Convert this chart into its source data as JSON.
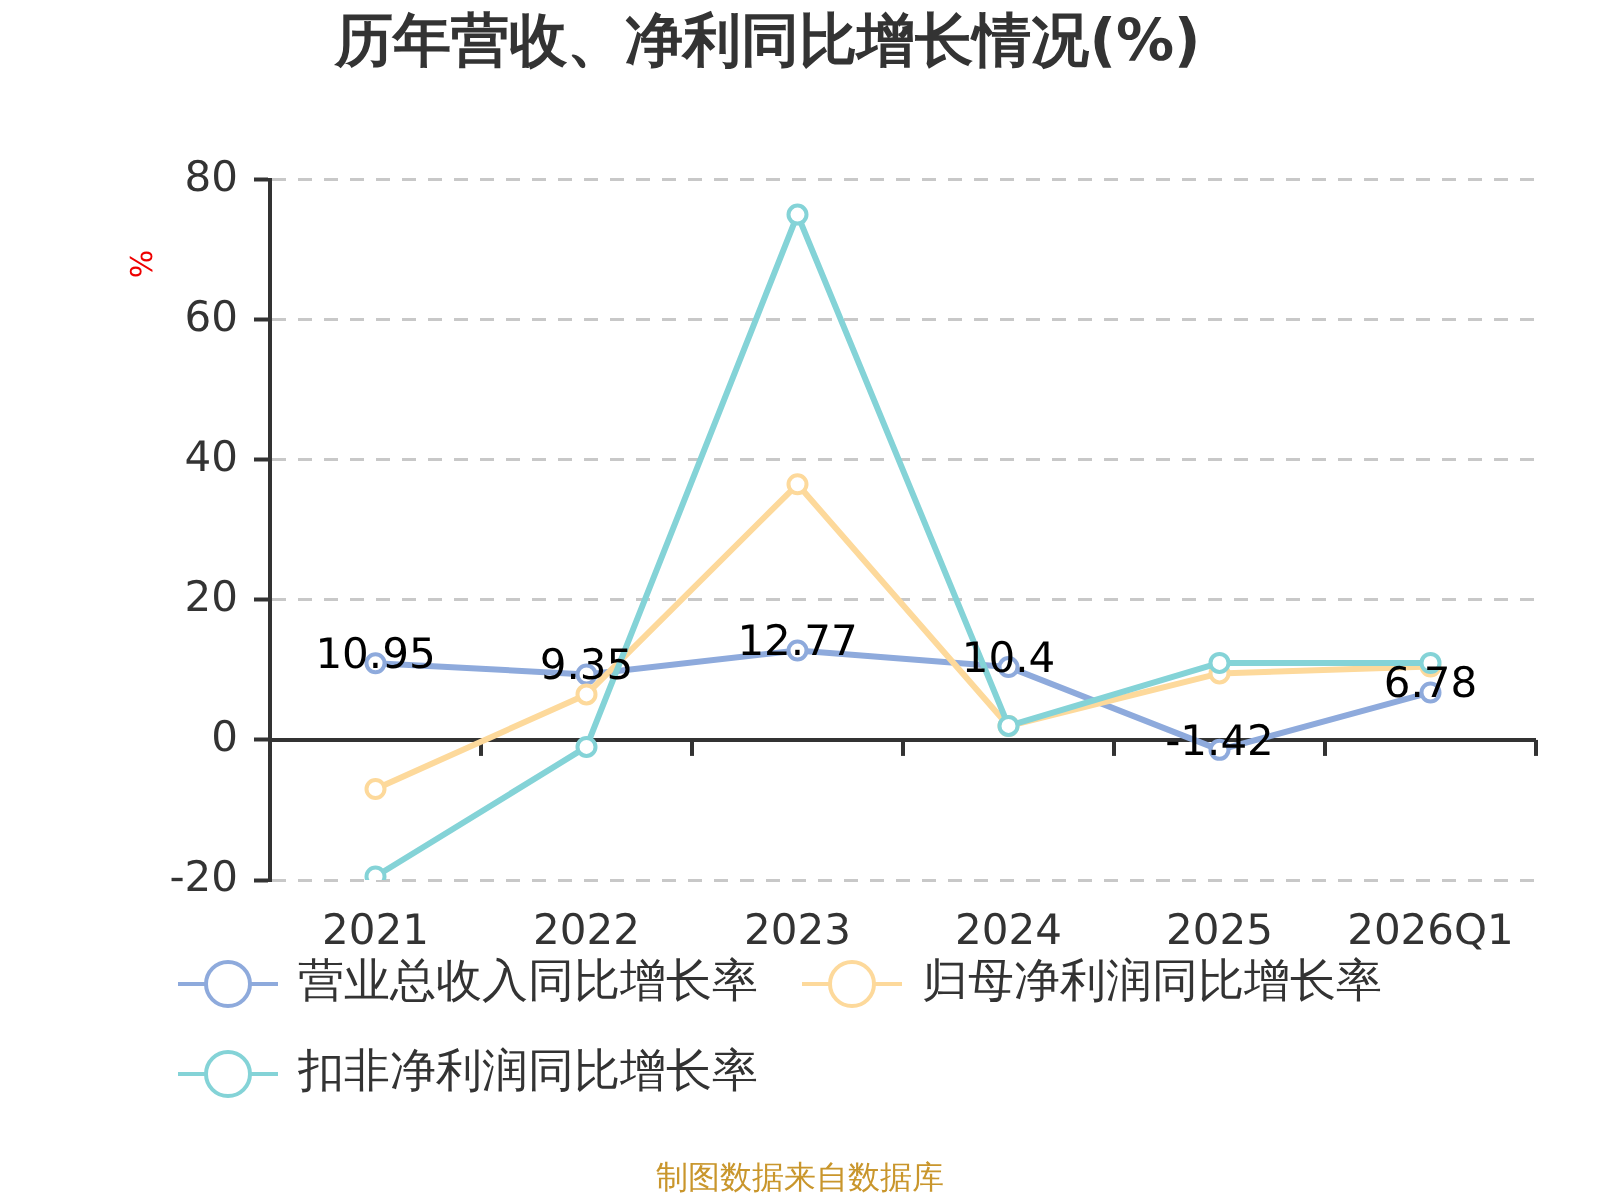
{
  "chart_data": {
    "type": "line",
    "title": "历年营收、净利同比增长情况(%)",
    "ylabel": "%",
    "categories": [
      "2021",
      "2022",
      "2023",
      "2024",
      "2025",
      "2026Q1"
    ],
    "series": [
      {
        "name": "营业总收入同比增长率",
        "color": "#8eaadc",
        "values": [
          10.95,
          9.35,
          12.77,
          10.4,
          -1.42,
          6.78
        ],
        "value_labels": [
          "10.95",
          "9.35",
          "12.77",
          "10.4",
          "-1.42",
          "6.78"
        ]
      },
      {
        "name": "归母净利润同比增长率",
        "color": "#fdd99b",
        "values": [
          -7,
          6.5,
          36.5,
          2,
          9.5,
          10.5
        ]
      },
      {
        "name": "扣非净利润同比增长率",
        "color": "#84d3d7",
        "values": [
          -19.5,
          -1,
          75,
          2,
          11,
          11
        ]
      }
    ],
    "ylim": [
      -20,
      80
    ],
    "yticks": [
      -20,
      0,
      20,
      40,
      60,
      80
    ],
    "grid": "y",
    "legend": "bottom",
    "marker": "circle",
    "annotations": [
      "制图数据来自数据库"
    ]
  }
}
